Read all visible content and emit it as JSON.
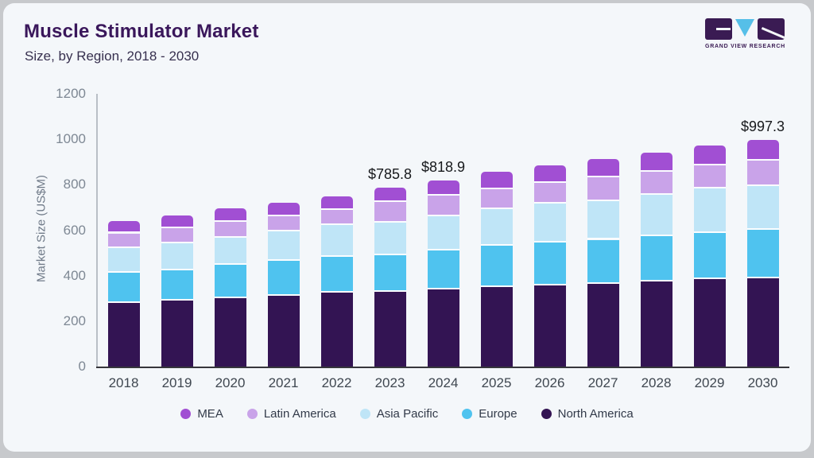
{
  "header": {
    "title": "Muscle Stimulator Market",
    "subtitle": "Size, by Region, 2018 - 2030"
  },
  "logo": {
    "caption": "GRAND VIEW RESEARCH",
    "dark_color": "#3a1b53",
    "accent_color": "#56bfe8"
  },
  "chart_data": {
    "type": "bar",
    "stacked": true,
    "title": "Muscle Stimulator Market Size, by Region, 2018 - 2030",
    "xlabel": "",
    "ylabel": "Market Size (US$M)",
    "ylim": [
      0,
      1200
    ],
    "yticks": [
      0,
      200,
      400,
      600,
      800,
      1000,
      1200
    ],
    "grid": false,
    "legend_position": "bottom",
    "background": "#f4f7fa",
    "categories": [
      "2018",
      "2019",
      "2020",
      "2021",
      "2022",
      "2023",
      "2024",
      "2025",
      "2026",
      "2027",
      "2028",
      "2029",
      "2030"
    ],
    "series": [
      {
        "name": "North America",
        "color": "#331453",
        "values": [
          281,
          289,
          301,
          312,
          324,
          329.8,
          339.3,
          351,
          357,
          365,
          376,
          384,
          388.4
        ]
      },
      {
        "name": "Europe",
        "color": "#4fc3ef",
        "values": [
          131,
          136,
          147,
          152,
          158,
          161.4,
          171.9,
          181,
          189,
          193,
          197,
          205,
          213.9
        ]
      },
      {
        "name": "Asia Pacific",
        "color": "#bfe5f7",
        "values": [
          110,
          119,
          118,
          131,
          140,
          142.8,
          149.5,
          160,
          170,
          170,
          181,
          195,
          193.1
        ]
      },
      {
        "name": "Latin America",
        "color": "#c9a3e9",
        "values": [
          64,
          65,
          69,
          65,
          67,
          91.3,
          90.2,
          89,
          93,
          105,
          102,
          100,
          110.9
        ]
      },
      {
        "name": "MEA",
        "color": "#a14fd3",
        "values": [
          55,
          55,
          61,
          62,
          60,
          60.5,
          68.0,
          75,
          76,
          80,
          85,
          88,
          91.0
        ]
      }
    ],
    "totals": [
      641,
      664,
      696,
      722,
      749,
      785.8,
      818.9,
      856,
      885,
      913,
      941,
      972,
      997.3
    ],
    "bar_labels": [
      {
        "category": "2023",
        "text": "$785.8"
      },
      {
        "category": "2024",
        "text": "$818.9"
      },
      {
        "category": "2030",
        "text": "$997.3"
      }
    ],
    "legend": [
      {
        "label": "MEA",
        "color": "#a14fd3"
      },
      {
        "label": "Latin America",
        "color": "#c9a3e9"
      },
      {
        "label": "Asia Pacific",
        "color": "#bfe5f7"
      },
      {
        "label": "Europe",
        "color": "#4fc3ef"
      },
      {
        "label": "North America",
        "color": "#331453"
      }
    ]
  }
}
